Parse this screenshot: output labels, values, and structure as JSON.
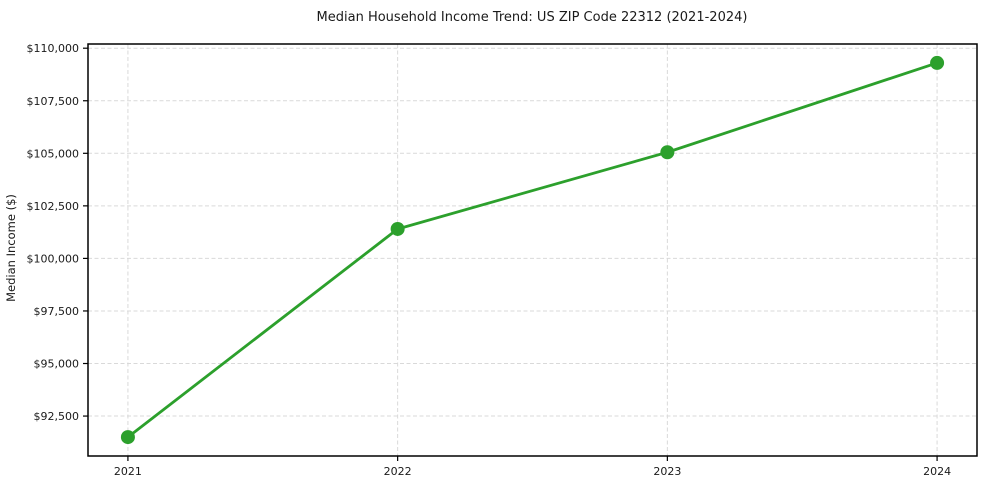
{
  "chart_data": {
    "type": "line",
    "title": "Median Household Income Trend: US ZIP Code 22312 (2021-2024)",
    "xlabel": "",
    "ylabel": "Median Income ($)",
    "categories": [
      "2021",
      "2022",
      "2023",
      "2024"
    ],
    "x": [
      2021,
      2022,
      2023,
      2024
    ],
    "series": [
      {
        "name": "Median Household Income",
        "values": [
          91500,
          101400,
          105050,
          109300
        ]
      }
    ],
    "yticks": [
      92500,
      95000,
      97500,
      100000,
      102500,
      105000,
      107500,
      110000
    ],
    "ytick_labels": [
      "$92,500",
      "$95,000",
      "$97,500",
      "$100,000",
      "$102,500",
      "$105,000",
      "$107,500",
      "$110,000"
    ],
    "ylim": [
      90600,
      110200
    ],
    "xlim": [
      2020.852,
      2024.148
    ],
    "grid": true,
    "legend": "none",
    "colors": {
      "line": "#2ca02c",
      "marker": "#2ca02c",
      "grid": "#d9d9d9",
      "spine": "#000000",
      "text": "#1a1a1a",
      "background": "#ffffff"
    }
  }
}
